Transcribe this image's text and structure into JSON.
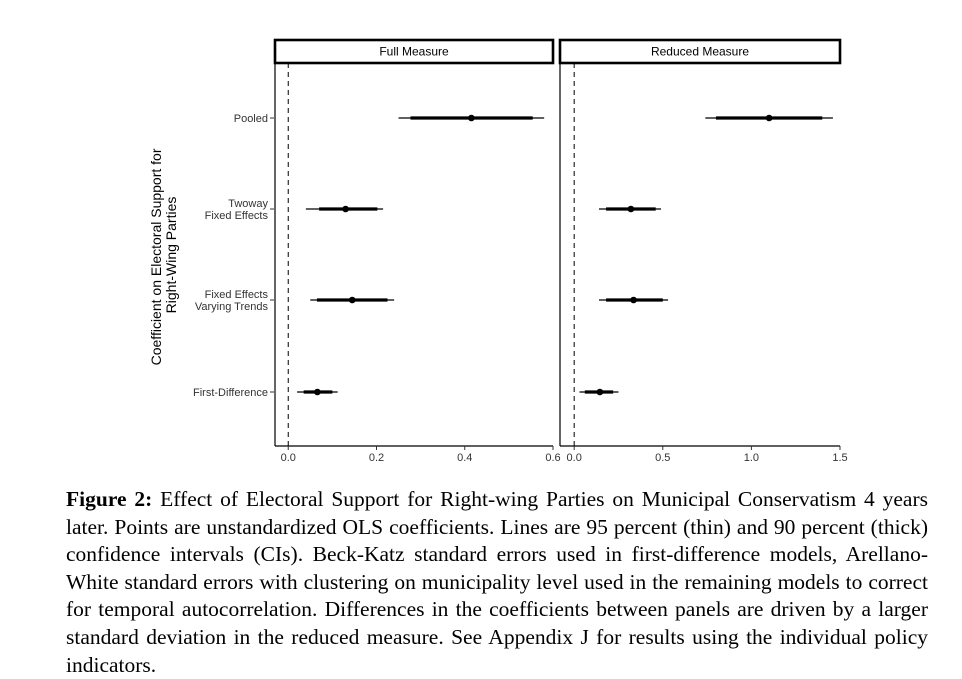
{
  "chart_data": {
    "type": "coefficient-plot",
    "ylabel_lines": [
      "Coefficient on Electoral Support for",
      "Right-Wing Parties"
    ],
    "categories": [
      {
        "lines": [
          "Pooled"
        ]
      },
      {
        "lines": [
          "Twoway",
          "Fixed Effects"
        ]
      },
      {
        "lines": [
          "Fixed Effects",
          "Varying Trends"
        ]
      },
      {
        "lines": [
          "First-Difference"
        ]
      }
    ],
    "reference_line": 0,
    "panels": [
      {
        "title": "Full Measure",
        "xlim": [
          -0.03,
          0.6
        ],
        "xticks": [
          0.0,
          0.2,
          0.4,
          0.6
        ],
        "xtick_labels": [
          "0.0",
          "0.2",
          "0.4",
          "0.6"
        ],
        "estimates": [
          {
            "category": "Pooled",
            "coef": 0.415,
            "ci90": [
              0.277,
              0.554
            ],
            "ci95": [
              0.25,
              0.58
            ]
          },
          {
            "category": "Twoway Fixed Effects",
            "coef": 0.13,
            "ci90": [
              0.07,
              0.202
            ],
            "ci95": [
              0.04,
              0.215
            ]
          },
          {
            "category": "Fixed Effects Varying Trends",
            "coef": 0.145,
            "ci90": [
              0.065,
              0.225
            ],
            "ci95": [
              0.05,
              0.24
            ]
          },
          {
            "category": "First-Difference",
            "coef": 0.066,
            "ci90": [
              0.035,
              0.1
            ],
            "ci95": [
              0.02,
              0.112
            ]
          }
        ]
      },
      {
        "title": "Reduced Measure",
        "xlim": [
          -0.08,
          1.5
        ],
        "xticks": [
          0.0,
          0.5,
          1.0,
          1.5
        ],
        "xtick_labels": [
          "0.0",
          "0.5",
          "1.0",
          "1.5"
        ],
        "estimates": [
          {
            "category": "Pooled",
            "coef": 1.1,
            "ci90": [
              0.8,
              1.4
            ],
            "ci95": [
              0.74,
              1.46
            ]
          },
          {
            "category": "Twoway Fixed Effects",
            "coef": 0.32,
            "ci90": [
              0.18,
              0.46
            ],
            "ci95": [
              0.14,
              0.49
            ]
          },
          {
            "category": "Fixed Effects Varying Trends",
            "coef": 0.335,
            "ci90": [
              0.18,
              0.5
            ],
            "ci95": [
              0.14,
              0.53
            ]
          },
          {
            "category": "First-Difference",
            "coef": 0.145,
            "ci90": [
              0.06,
              0.22
            ],
            "ci95": [
              0.03,
              0.25
            ]
          }
        ]
      }
    ]
  },
  "caption": {
    "label": "Figure 2:",
    "text": " Effect of Electoral Support for Right-wing Parties on Municipal Conservatism 4 years later. Points are unstandardized OLS coefficients. Lines are 95 percent (thin) and 90 percent (thick) confidence intervals (CIs). Beck-Katz standard errors used in first-difference models, Arellano-White standard errors with clustering on municipality level used in the remaining models to correct for temporal autocorrelation. Differences in the coefficients between panels are driven by a larger standard deviation in the reduced measure. See Appendix J for results using the individual policy indicators."
  }
}
